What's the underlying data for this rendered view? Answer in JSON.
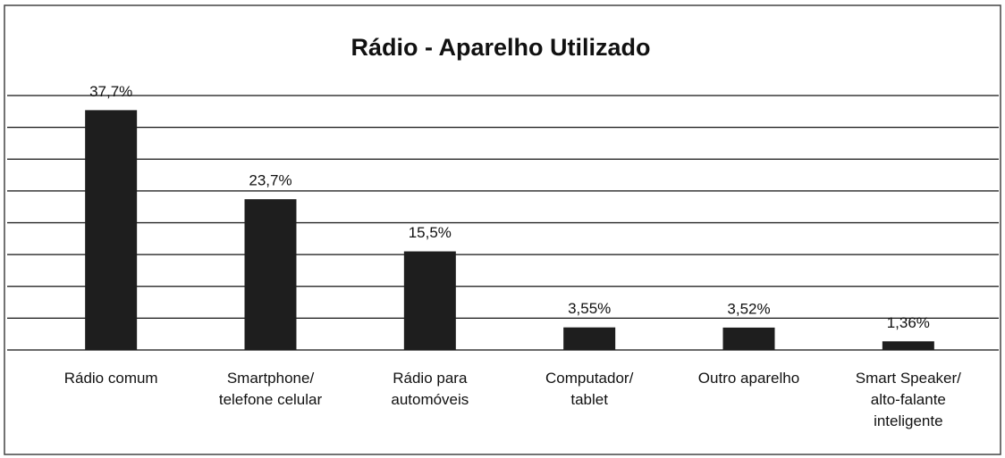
{
  "chart_data": {
    "type": "bar",
    "title": "Rádio - Aparelho Utilizado",
    "categories": [
      "Rádio comum",
      "Smartphone/\ntelefone celular",
      "Rádio para\nautomóveis",
      "Computador/\ntablet",
      "Outro aparelho",
      "Smart Speaker/\nalto-falante\ninteligente"
    ],
    "values": [
      37.7,
      23.7,
      15.5,
      3.55,
      3.52,
      1.36
    ],
    "value_labels": [
      "37,7%",
      "23,7%",
      "15,5%",
      "3,55%",
      "3,52%",
      "1,36%"
    ],
    "color": "#1e1e1e",
    "ylim": [
      0,
      40
    ],
    "yticks": [
      0,
      5,
      10,
      15,
      20,
      25,
      30,
      35,
      40
    ],
    "grid": true
  }
}
